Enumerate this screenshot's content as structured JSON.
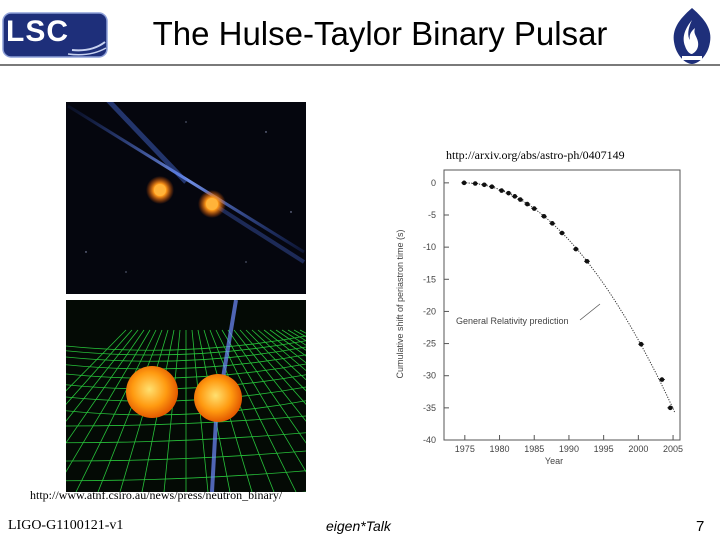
{
  "slide": {
    "title": "The Hulse-Taylor Binary Pulsar",
    "logo_text": "LSC",
    "chart_source_url": "http://arxiv.org/abs/astro-ph/0407149",
    "image_source_url": "http://www.atnf.csiro.au/news/press/neutron_binary/",
    "doc_id": "LIGO-G1100121-v1",
    "footer_center": "eigen*Talk",
    "page_number": "7"
  },
  "colors": {
    "logo_blue": "#1e2f7a",
    "star_orange": "#ff8a10",
    "grid_green": "#27c23a"
  },
  "images": {
    "top_icon": "binary-stars-jets-image",
    "bottom_icon": "binary-stars-spacetime-grid-image"
  },
  "chart_data": {
    "type": "scatter",
    "ylabel": "Cumulative shift of periastron time (s)",
    "xlabel": "Year",
    "annotation": "General Relativity prediction",
    "xlim": [
      1972,
      2006
    ],
    "ylim": [
      -40,
      2
    ],
    "x_ticks": [
      1975,
      1980,
      1985,
      1990,
      1995,
      2000,
      2005
    ],
    "y_ticks": [
      0,
      -5,
      -10,
      -15,
      -20,
      -25,
      -30,
      -35,
      -40
    ],
    "x_tick_labels": [
      "1975",
      "1980",
      "1985",
      "1990",
      "1995",
      "2000",
      "2005"
    ],
    "y_tick_labels": [
      "0",
      "-5",
      "-10",
      "-15",
      "-20",
      "-25",
      "-30",
      "-35",
      "-40"
    ],
    "curve": {
      "t0": 1974.8,
      "k": 0.0385
    },
    "points": [
      {
        "x": 1974.9,
        "y": 0.0
      },
      {
        "x": 1976.5,
        "y": -0.1
      },
      {
        "x": 1977.8,
        "y": -0.3
      },
      {
        "x": 1978.9,
        "y": -0.6
      },
      {
        "x": 1980.3,
        "y": -1.2
      },
      {
        "x": 1981.3,
        "y": -1.6
      },
      {
        "x": 1982.2,
        "y": -2.1
      },
      {
        "x": 1983.0,
        "y": -2.6
      },
      {
        "x": 1984.0,
        "y": -3.3
      },
      {
        "x": 1985.0,
        "y": -4.0
      },
      {
        "x": 1986.4,
        "y": -5.2
      },
      {
        "x": 1987.6,
        "y": -6.3
      },
      {
        "x": 1989.0,
        "y": -7.8
      },
      {
        "x": 1991.0,
        "y": -10.3
      },
      {
        "x": 1992.6,
        "y": -12.2
      },
      {
        "x": 2000.4,
        "y": -25.1
      },
      {
        "x": 2003.4,
        "y": -30.6
      },
      {
        "x": 2004.6,
        "y": -35.0
      }
    ]
  }
}
